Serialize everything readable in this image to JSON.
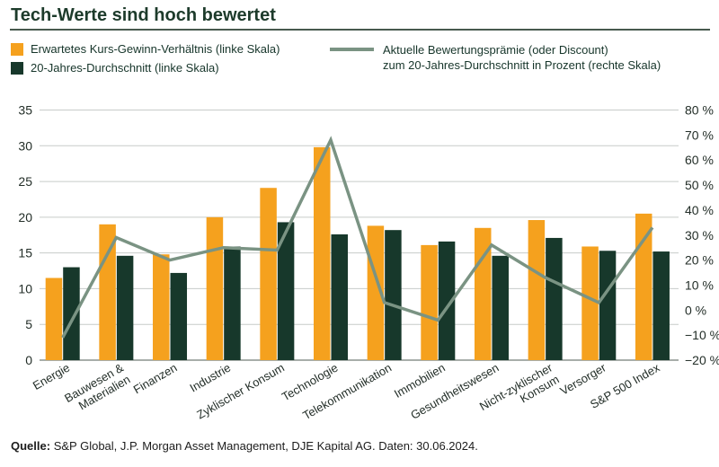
{
  "title": "Tech-Werte sind hoch bewertet",
  "legend": {
    "bars": [
      {
        "label": "Erwartetes Kurs-Gewinn-Verhältnis (linke Skala)",
        "color": "#F5A11E"
      },
      {
        "label": "20-Jahres-Durchschnitt (linke Skala)",
        "color": "#17382B"
      }
    ],
    "line": {
      "label_line1": "Aktuelle Bewertungsprämie (oder Discount)",
      "label_line2": "zum 20-Jahres-Durchschnitt in Prozent (rechte Skala)",
      "color": "#7A9383"
    }
  },
  "chart_data": {
    "type": "bar+line",
    "title": "Tech-Werte sind hoch bewertet",
    "categories": [
      "Energie",
      "Bauwesen & Materialien",
      "Finanzen",
      "Industrie",
      "Zyklischer Konsum",
      "Technologie",
      "Telekommunikation",
      "Immobilien",
      "Gesundheitswesen",
      "Nicht-zyklischer Konsum",
      "Versorger",
      "S&P 500 Index"
    ],
    "category_lines": [
      [
        "Energie"
      ],
      [
        "Bauwesen &",
        "Materialien"
      ],
      [
        "Finanzen"
      ],
      [
        "Industrie"
      ],
      [
        "Zyklischer Konsum"
      ],
      [
        "Technologie"
      ],
      [
        "Telekommunikation"
      ],
      [
        "Immobilien"
      ],
      [
        "Gesundheitswesen"
      ],
      [
        "Nicht-zyklischer",
        "Konsum"
      ],
      [
        "Versorger"
      ],
      [
        "S&P 500 Index"
      ]
    ],
    "series": [
      {
        "name": "Erwartetes Kurs-Gewinn-Verhältnis (linke Skala)",
        "type": "bar",
        "axis": "left",
        "color": "#F5A11E",
        "values": [
          11.5,
          19.0,
          14.8,
          20.0,
          24.1,
          29.8,
          18.8,
          16.1,
          18.5,
          19.6,
          15.9,
          20.5
        ]
      },
      {
        "name": "20-Jahres-Durchschnitt (linke Skala)",
        "type": "bar",
        "axis": "left",
        "color": "#17382B",
        "values": [
          13.0,
          14.6,
          12.2,
          15.9,
          19.3,
          17.6,
          18.2,
          16.6,
          14.6,
          17.1,
          15.3,
          15.2
        ]
      },
      {
        "name": "Aktuelle Bewertungsprämie (oder Discount) zum 20-Jahres-Durchschnitt in Prozent (rechte Skala)",
        "type": "line",
        "axis": "right",
        "color": "#7A9383",
        "values": [
          -11,
          29,
          20,
          25,
          24,
          68,
          3,
          -4,
          26,
          13,
          3,
          33
        ]
      }
    ],
    "left_axis": {
      "min": 0,
      "max": 35,
      "step": 5,
      "ticks": [
        "35",
        "30",
        "25",
        "20",
        "15",
        "10",
        "5",
        "0"
      ]
    },
    "right_axis": {
      "min": -20,
      "max": 80,
      "step": 10,
      "ticks": [
        "80 %",
        "70 %",
        "60 %",
        "50 %",
        "40 %",
        "30 %",
        "20 %",
        "10 %",
        "0 %",
        "−10 %",
        "−20 %"
      ]
    },
    "grid": true,
    "legend_position": "top",
    "colors": {
      "grid": "#C7CCC9",
      "axis_line": "#9BA39E",
      "tick_text": "#232E28"
    }
  },
  "footer": {
    "source_label": "Quelle:",
    "source_text": "S&P Global, J.P. Morgan Asset Management, DJE Kapital AG. Daten: 30.06.2024."
  }
}
